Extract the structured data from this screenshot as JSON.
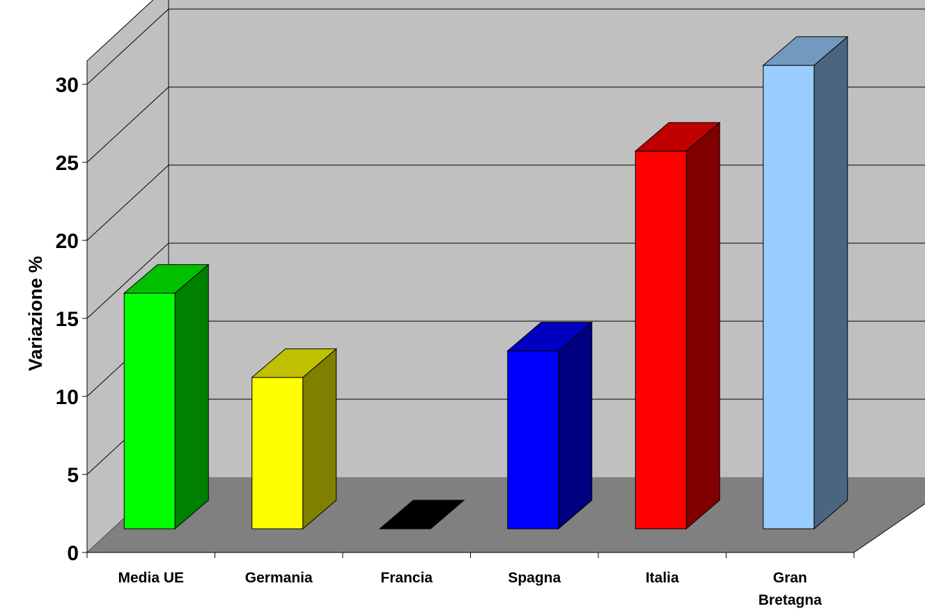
{
  "chart_data": {
    "type": "bar",
    "style": "3d-column",
    "title": "",
    "xlabel": "",
    "ylabel": "Variazione %",
    "categories": [
      "Media UE",
      "Germania",
      "Francia",
      "Spagna",
      "Italia",
      "Gran Bretagna"
    ],
    "category_lines": [
      [
        "Media UE"
      ],
      [
        "Germania"
      ],
      [
        "Francia"
      ],
      [
        "Spagna"
      ],
      [
        "Italia"
      ],
      [
        "Gran",
        "Bretagna"
      ]
    ],
    "values": [
      15.1,
      9.7,
      0,
      11.4,
      24.2,
      29.7
    ],
    "ylim": [
      0,
      30
    ],
    "yticks": [
      "0",
      "5",
      "10",
      "15",
      "20",
      "25",
      "30"
    ],
    "grid": true,
    "legend": "none",
    "colors": {
      "front": [
        "#00ff00",
        "#ffff00",
        "#000000",
        "#0000ff",
        "#ff0000",
        "#99ccff"
      ],
      "side": [
        "#008000",
        "#808000",
        "#000000",
        "#000080",
        "#800000",
        "#4a6580"
      ],
      "top": [
        "#00c000",
        "#c0c000",
        "#000000",
        "#0000c0",
        "#c00000",
        "#7399c0"
      ],
      "back_wall": "#c0c0c0",
      "side_wall": "#c0c0c0",
      "floor": "#808080"
    }
  }
}
